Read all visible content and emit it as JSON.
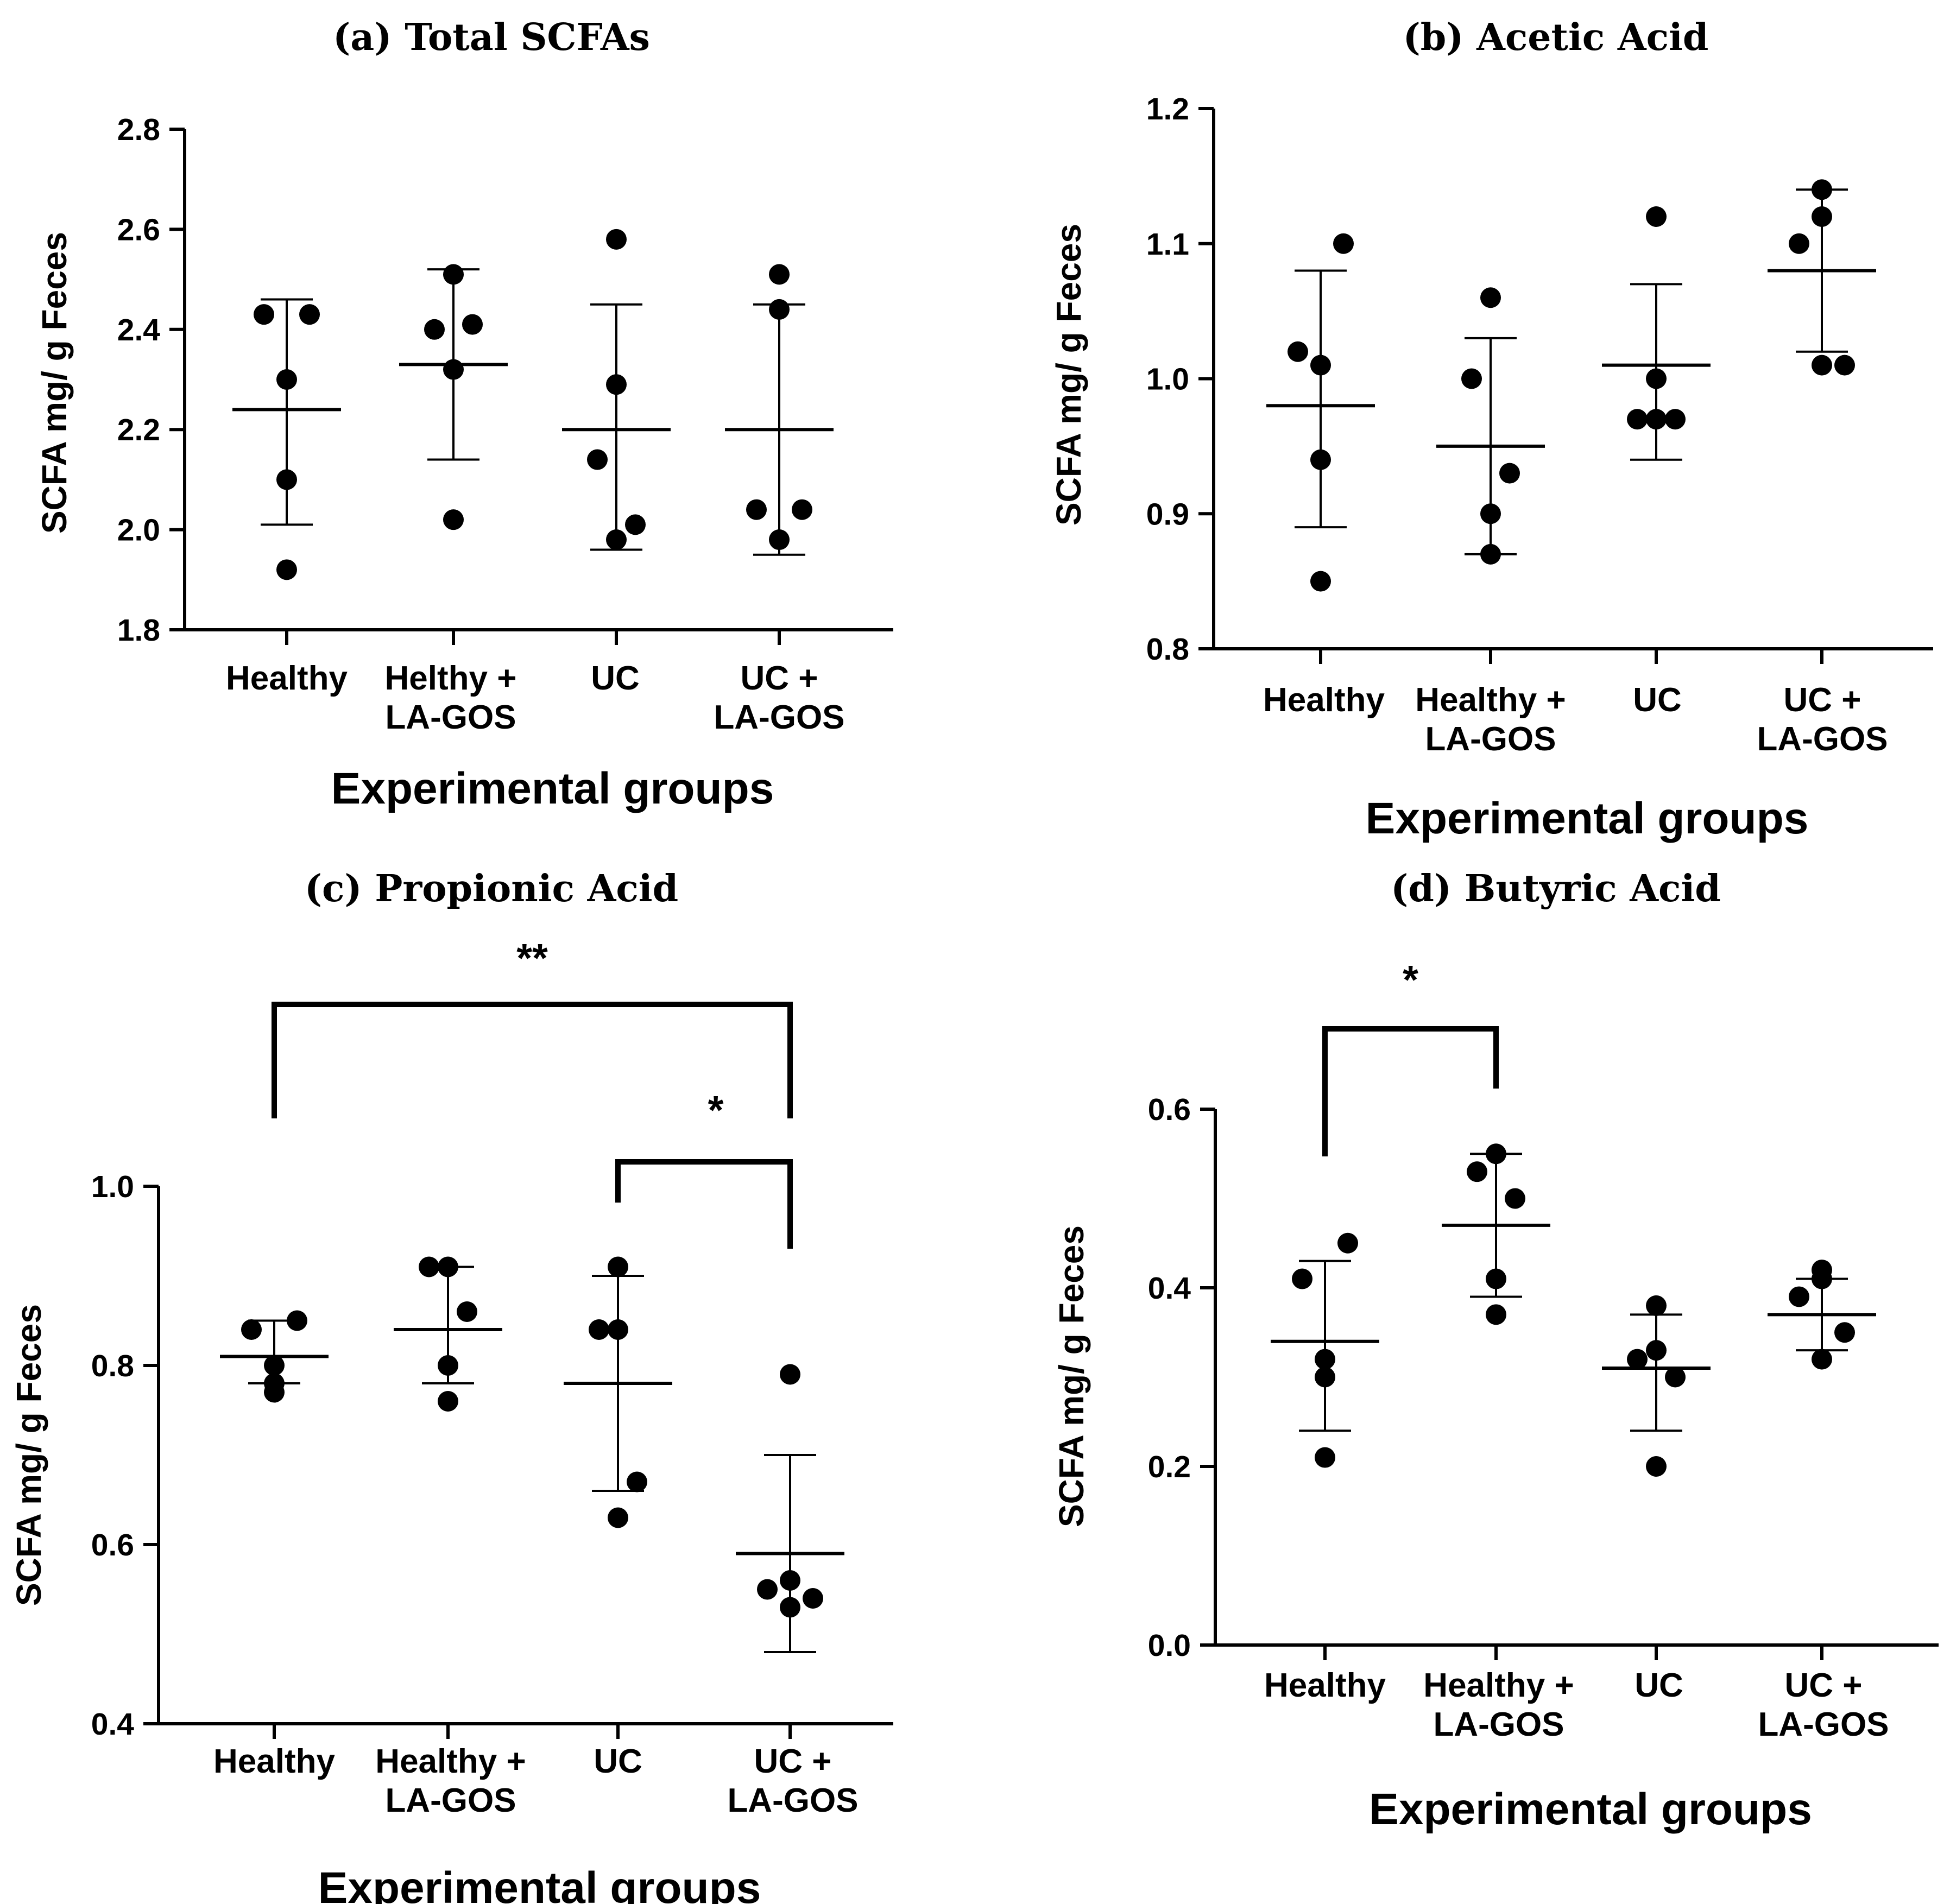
{
  "chart_data": [
    {
      "type": "scatter",
      "title": "(a) Total SCFAs",
      "xlabel": "Experimental groups",
      "ylabel": "SCFA mg/ g Feces",
      "ylim": [
        1.8,
        2.8
      ],
      "yticks": [
        "1.8",
        "2.0",
        "2.2",
        "2.4",
        "2.6",
        "2.8"
      ],
      "categories": [
        [
          "Healthy"
        ],
        [
          "Helthy +",
          "LA-GOS"
        ],
        [
          "UC"
        ],
        [
          "UC +",
          "LA-GOS"
        ]
      ],
      "groups": [
        {
          "points": [
            2.43,
            2.43,
            2.3,
            2.1,
            1.92
          ],
          "mean": 2.24,
          "sd_low": 2.01,
          "sd_high": 2.46
        },
        {
          "points": [
            2.51,
            2.4,
            2.41,
            2.32,
            2.02
          ],
          "mean": 2.33,
          "sd_low": 2.14,
          "sd_high": 2.52
        },
        {
          "points": [
            2.58,
            2.29,
            2.14,
            2.01,
            1.98
          ],
          "mean": 2.2,
          "sd_low": 1.96,
          "sd_high": 2.45
        },
        {
          "points": [
            2.51,
            2.44,
            2.04,
            2.04,
            1.98
          ],
          "mean": 2.2,
          "sd_low": 1.95,
          "sd_high": 2.45
        }
      ],
      "significance": []
    },
    {
      "type": "scatter",
      "title": "(b) Acetic Acid",
      "xlabel": "Experimental groups",
      "ylabel": "SCFA mg/ g Feces",
      "ylim": [
        0.8,
        1.2
      ],
      "yticks": [
        "0.8",
        "0.9",
        "1.0",
        "1.1",
        "1.2"
      ],
      "categories": [
        [
          "Healthy"
        ],
        [
          "Healthy +",
          "LA-GOS"
        ],
        [
          "UC"
        ],
        [
          "UC +",
          "LA-GOS"
        ]
      ],
      "groups": [
        {
          "points": [
            1.1,
            1.02,
            1.01,
            0.94,
            0.85
          ],
          "mean": 0.98,
          "sd_low": 0.89,
          "sd_high": 1.08
        },
        {
          "points": [
            1.06,
            1.0,
            0.93,
            0.9,
            0.87
          ],
          "mean": 0.95,
          "sd_low": 0.87,
          "sd_high": 1.03
        },
        {
          "points": [
            1.12,
            1.0,
            0.97,
            0.97,
            0.97
          ],
          "mean": 1.01,
          "sd_low": 0.94,
          "sd_high": 1.07
        },
        {
          "points": [
            1.14,
            1.12,
            1.1,
            1.01,
            1.01
          ],
          "mean": 1.08,
          "sd_low": 1.02,
          "sd_high": 1.14
        }
      ],
      "significance": []
    },
    {
      "type": "scatter",
      "title": "(c) Propionic Acid",
      "xlabel": "Experimental groups",
      "ylabel": "SCFA mg/ g Feces",
      "ylim": [
        0.4,
        1.0
      ],
      "yticks": [
        "0.4",
        "0.6",
        "0.8",
        "1.0"
      ],
      "categories": [
        [
          "Healthy"
        ],
        [
          "Healthy +",
          "LA-GOS"
        ],
        [
          "UC"
        ],
        [
          "UC +",
          "LA-GOS"
        ]
      ],
      "groups": [
        {
          "points": [
            0.85,
            0.84,
            0.8,
            0.78,
            0.77
          ],
          "mean": 0.81,
          "sd_low": 0.78,
          "sd_high": 0.85
        },
        {
          "points": [
            0.91,
            0.91,
            0.86,
            0.8,
            0.76
          ],
          "mean": 0.84,
          "sd_low": 0.78,
          "sd_high": 0.91
        },
        {
          "points": [
            0.91,
            0.84,
            0.84,
            0.67,
            0.63
          ],
          "mean": 0.78,
          "sd_low": 0.66,
          "sd_high": 0.9
        },
        {
          "points": [
            0.79,
            0.56,
            0.55,
            0.54,
            0.53
          ],
          "mean": 0.59,
          "sd_low": 0.48,
          "sd_high": 0.7
        }
      ],
      "significance": [
        {
          "from": 0,
          "to": 3,
          "label": "**",
          "level": 0
        },
        {
          "from": 2,
          "to": 3,
          "label": "*",
          "level": 1
        }
      ]
    },
    {
      "type": "scatter",
      "title": "(d) Butyric Acid",
      "xlabel": "Experimental groups",
      "ylabel": "SCFA mg/ g Feces",
      "ylim": [
        0.0,
        0.6
      ],
      "yticks": [
        "0.0",
        "0.2",
        "0.4",
        "0.6"
      ],
      "categories": [
        [
          "Healthy"
        ],
        [
          "Healthy +",
          "LA-GOS"
        ],
        [
          "UC"
        ],
        [
          "UC +",
          "LA-GOS"
        ]
      ],
      "groups": [
        {
          "points": [
            0.45,
            0.41,
            0.32,
            0.3,
            0.21
          ],
          "mean": 0.34,
          "sd_low": 0.24,
          "sd_high": 0.43
        },
        {
          "points": [
            0.55,
            0.53,
            0.5,
            0.41,
            0.37
          ],
          "mean": 0.47,
          "sd_low": 0.39,
          "sd_high": 0.55
        },
        {
          "points": [
            0.38,
            0.33,
            0.32,
            0.3,
            0.2
          ],
          "mean": 0.31,
          "sd_low": 0.24,
          "sd_high": 0.37
        },
        {
          "points": [
            0.42,
            0.41,
            0.39,
            0.35,
            0.32
          ],
          "mean": 0.37,
          "sd_low": 0.33,
          "sd_high": 0.41
        }
      ],
      "significance": [
        {
          "from": 0,
          "to": 1,
          "label": "*",
          "level": 0
        }
      ]
    }
  ]
}
